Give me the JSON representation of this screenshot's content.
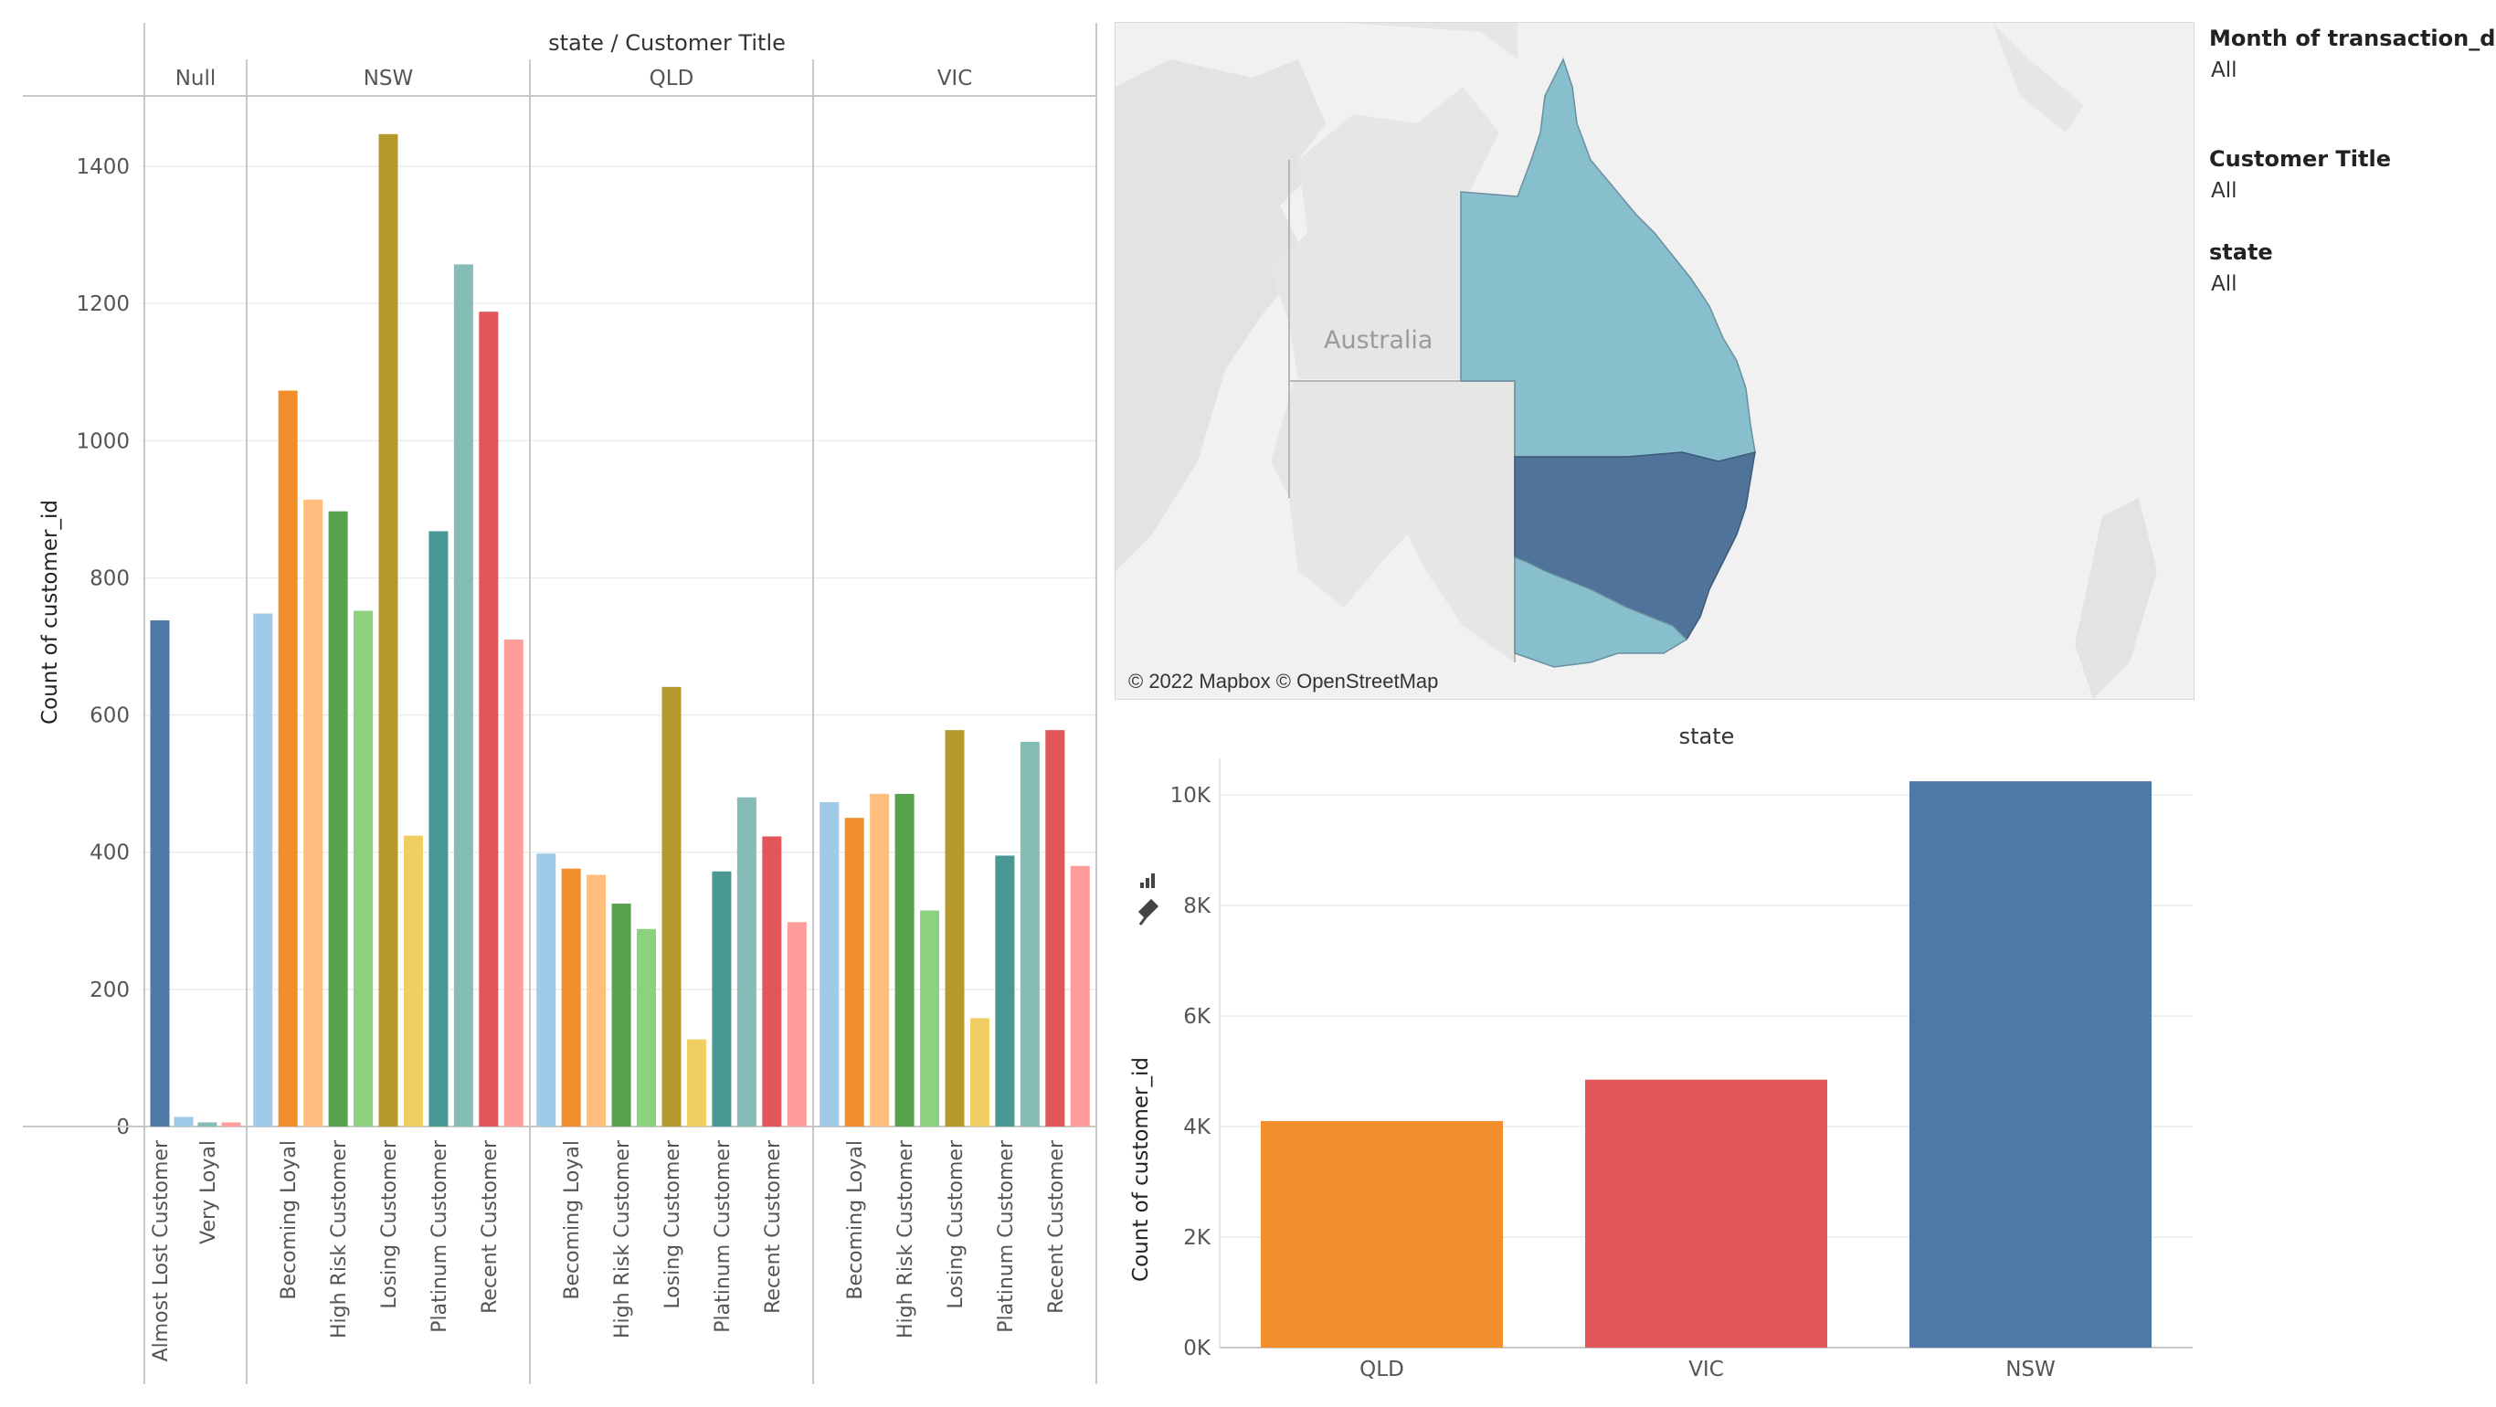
{
  "colors": {
    "almost_lost": "#4e79a7",
    "becoming_loyal": "#f28e2b",
    "becoming_loyal_light": "#ffbe7d",
    "high_risk": "#59a14f",
    "high_risk_light": "#8cd17d",
    "losing": "#b6992d",
    "losing_light": "#f1ce63",
    "platinum": "#499894",
    "platinum_light": "#86bcb6",
    "recent": "#e15759",
    "recent_light": "#ff9d9a",
    "light_blue": "#a0cbe8",
    "qld_map": "#87bfcc",
    "nsw_map": "#50739a",
    "vic_map": "#87bfcc"
  },
  "chart_data": [
    {
      "type": "bar",
      "title": "state  /  Customer Title",
      "ylabel": "Count of customer_id",
      "ylim": [
        0,
        1500
      ],
      "yticks": [
        "0",
        "200",
        "400",
        "600",
        "800",
        "1000",
        "1200",
        "1400"
      ],
      "grid": true,
      "panels": [
        {
          "name": "Null",
          "bars": [
            {
              "value": 738,
              "color": "#4e79a7",
              "label": "Almost Lost Customer"
            },
            {
              "value": 14,
              "color": "#a0cbe8",
              "label": ""
            },
            {
              "value": 6,
              "color": "#86bcb6",
              "label": "Very Loyal"
            },
            {
              "value": 6,
              "color": "#ff9d9a",
              "label": ""
            }
          ]
        },
        {
          "name": "NSW",
          "bars": [
            {
              "value": 748,
              "color": "#a0cbe8",
              "label": ""
            },
            {
              "value": 1073,
              "color": "#f28e2b",
              "label": "Becoming Loyal"
            },
            {
              "value": 914,
              "color": "#ffbe7d",
              "label": ""
            },
            {
              "value": 897,
              "color": "#59a14f",
              "label": "High Risk Customer"
            },
            {
              "value": 752,
              "color": "#8cd17d",
              "label": ""
            },
            {
              "value": 1447,
              "color": "#b6992d",
              "label": "Losing Customer"
            },
            {
              "value": 424,
              "color": "#f1ce63",
              "label": ""
            },
            {
              "value": 868,
              "color": "#499894",
              "label": "Platinum Customer"
            },
            {
              "value": 1257,
              "color": "#86bcb6",
              "label": ""
            },
            {
              "value": 1188,
              "color": "#e15759",
              "label": "Recent Customer"
            },
            {
              "value": 710,
              "color": "#ff9d9a",
              "label": ""
            }
          ]
        },
        {
          "name": "QLD",
          "bars": [
            {
              "value": 398,
              "color": "#a0cbe8",
              "label": ""
            },
            {
              "value": 376,
              "color": "#f28e2b",
              "label": "Becoming Loyal"
            },
            {
              "value": 367,
              "color": "#ffbe7d",
              "label": ""
            },
            {
              "value": 325,
              "color": "#59a14f",
              "label": "High Risk Customer"
            },
            {
              "value": 288,
              "color": "#8cd17d",
              "label": ""
            },
            {
              "value": 641,
              "color": "#b6992d",
              "label": "Losing Customer"
            },
            {
              "value": 127,
              "color": "#f1ce63",
              "label": ""
            },
            {
              "value": 372,
              "color": "#499894",
              "label": "Platinum Customer"
            },
            {
              "value": 480,
              "color": "#86bcb6",
              "label": ""
            },
            {
              "value": 423,
              "color": "#e15759",
              "label": "Recent Customer"
            },
            {
              "value": 298,
              "color": "#ff9d9a",
              "label": ""
            }
          ]
        },
        {
          "name": "VIC",
          "bars": [
            {
              "value": 473,
              "color": "#a0cbe8",
              "label": ""
            },
            {
              "value": 450,
              "color": "#f28e2b",
              "label": "Becoming Loyal"
            },
            {
              "value": 485,
              "color": "#ffbe7d",
              "label": ""
            },
            {
              "value": 485,
              "color": "#59a14f",
              "label": "High Risk Customer"
            },
            {
              "value": 315,
              "color": "#8cd17d",
              "label": ""
            },
            {
              "value": 578,
              "color": "#b6992d",
              "label": "Losing Customer"
            },
            {
              "value": 158,
              "color": "#f1ce63",
              "label": ""
            },
            {
              "value": 395,
              "color": "#499894",
              "label": "Platinum Customer"
            },
            {
              "value": 561,
              "color": "#86bcb6",
              "label": ""
            },
            {
              "value": 578,
              "color": "#e15759",
              "label": "Recent Customer"
            },
            {
              "value": 380,
              "color": "#ff9d9a",
              "label": ""
            }
          ]
        }
      ]
    },
    {
      "type": "bar",
      "title": "state",
      "ylabel": "Count of customer_id",
      "categories": [
        "QLD",
        "VIC",
        "NSW"
      ],
      "values": [
        4100,
        4850,
        10250
      ],
      "colors": [
        "#f28e2b",
        "#e15759",
        "#4e79a7"
      ],
      "ylim": [
        0,
        10500
      ],
      "yticks": [
        "0K",
        "2K",
        "4K",
        "6K",
        "8K",
        "10K"
      ],
      "grid": true
    }
  ],
  "map": {
    "country_label": "Australia",
    "credit": "© 2022 Mapbox © OpenStreetMap"
  },
  "filters": [
    {
      "title": "Month of transaction_da..",
      "value": "All"
    },
    {
      "title": "Customer Title",
      "value": "All"
    },
    {
      "title": "state",
      "value": "All"
    }
  ]
}
